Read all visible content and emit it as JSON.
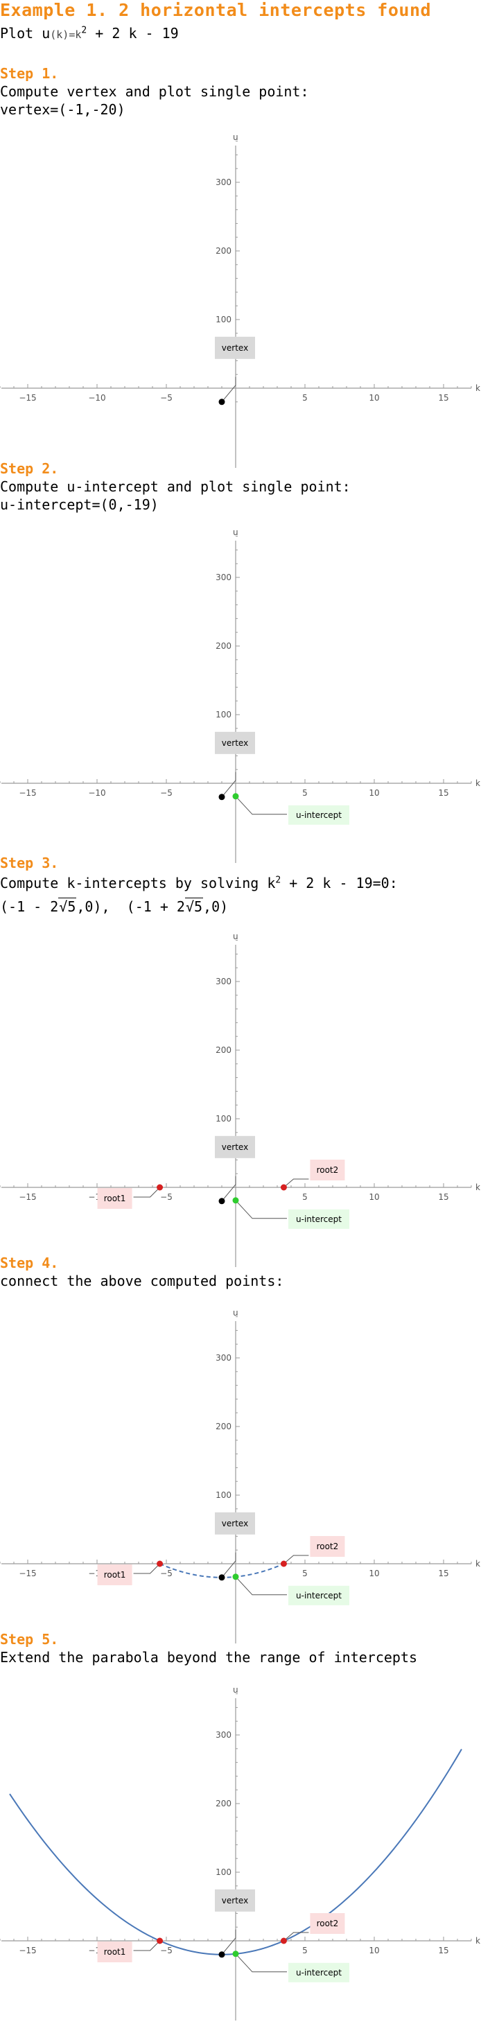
{
  "header": {
    "title": "Example 1. 2 horizontal intercepts found",
    "plot_prefix": "Plot u",
    "plot_fn": "(k)=k",
    "plot_exp": "2",
    "plot_rest": " + 2 k - 19"
  },
  "steps": [
    {
      "heading": "Step 1.",
      "desc": "Compute vertex and plot single point:",
      "result": "vertex=(-1,-20)"
    },
    {
      "heading": "Step 2.",
      "desc": "Compute u-intercept and plot single point:",
      "result": "u-intercept=(0,-19)"
    },
    {
      "heading": "Step 3.",
      "desc_prefix": "Compute k-intercepts by solving k",
      "desc_exp": "2",
      "desc_suffix": " + 2 k - 19=0:",
      "root1_a": "(-1 - 2",
      "root1_sqrt": "5",
      "root1_b": ",0),",
      "root2_a": "(-1 + 2",
      "root2_sqrt": "5",
      "root2_b": ",0)"
    },
    {
      "heading": "Step 4.",
      "desc": "connect the above computed points:"
    },
    {
      "heading": "Step 5.",
      "desc": "Extend the parabola beyond the range of intercepts"
    }
  ],
  "chart_data": {
    "type": "scatter",
    "function": "u(k) = k^2 + 2k - 19",
    "xlabel": "k",
    "ylabel": "u",
    "xlim": [
      -17,
      18
    ],
    "ylim": [
      -30,
      360
    ],
    "xticks": [
      -15,
      -10,
      -5,
      5,
      10,
      15
    ],
    "yticks": [
      100,
      200,
      300
    ],
    "points": {
      "vertex": {
        "x": -1,
        "y": -20,
        "label": "vertex",
        "color": "#000000",
        "box": "#d9d9d9"
      },
      "u_intercept": {
        "x": 0,
        "y": -19,
        "label": "u-intercept",
        "color": "#2ecc2e",
        "box": "#e6fbe6"
      },
      "root1": {
        "x": -5.472,
        "y": 0,
        "label": "root1",
        "color": "#d62020",
        "box": "#fbdede"
      },
      "root2": {
        "x": 3.472,
        "y": 0,
        "label": "root2",
        "color": "#d62020",
        "box": "#fbdede"
      }
    },
    "curve_color": "#4a78b8",
    "panels": [
      {
        "points": [
          "vertex"
        ],
        "curve": "none"
      },
      {
        "points": [
          "vertex",
          "u_intercept"
        ],
        "curve": "none"
      },
      {
        "points": [
          "vertex",
          "u_intercept",
          "root1",
          "root2"
        ],
        "curve": "none"
      },
      {
        "points": [
          "vertex",
          "u_intercept",
          "root1",
          "root2"
        ],
        "curve": "dashed-between-roots"
      },
      {
        "points": [
          "vertex",
          "u_intercept",
          "root1",
          "root2"
        ],
        "curve": "full"
      }
    ]
  }
}
